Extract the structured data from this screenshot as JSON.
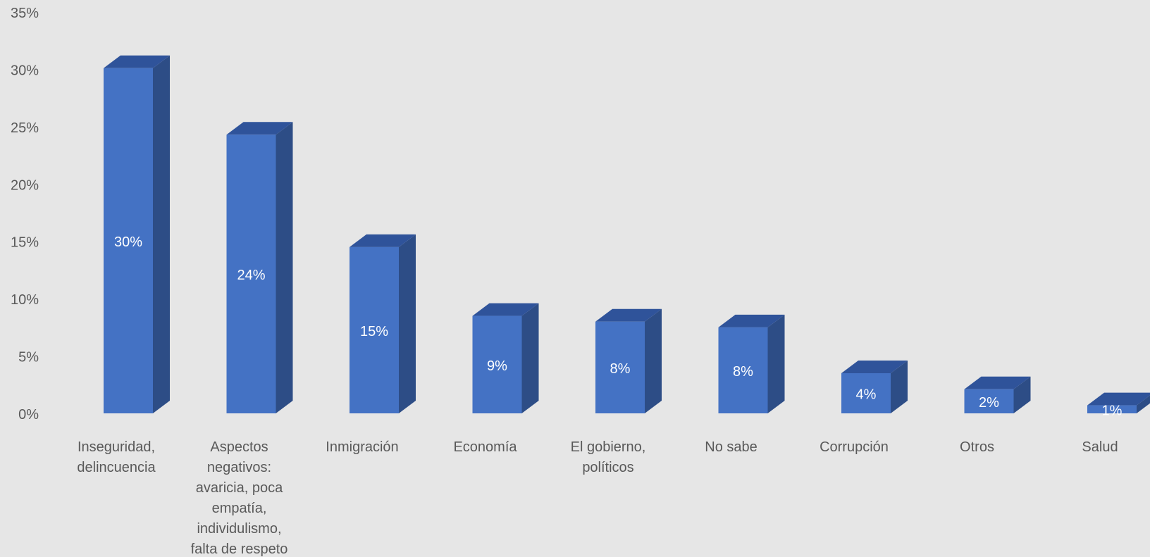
{
  "chart_data": {
    "type": "bar",
    "style": "3d-column",
    "categories": [
      [
        "Inseguridad,",
        "delincuencia"
      ],
      [
        "Aspectos",
        "negativos:",
        "avaricia, poca",
        "empatía,",
        "individulismo,",
        "falta de respeto"
      ],
      [
        "Inmigración"
      ],
      [
        "Economía"
      ],
      [
        "El gobierno,",
        "políticos"
      ],
      [
        "No sabe"
      ],
      [
        "Corrupción"
      ],
      [
        "Otros"
      ],
      [
        "Salud"
      ]
    ],
    "values": [
      30,
      24,
      15,
      9,
      8,
      8,
      4,
      2,
      1
    ],
    "bar_heights": [
      30.1,
      24.3,
      14.5,
      8.5,
      8.0,
      7.5,
      3.5,
      2.1,
      0.7
    ],
    "data_labels": [
      "30%",
      "24%",
      "15%",
      "9%",
      "8%",
      "8%",
      "4%",
      "2%",
      "1%"
    ],
    "yticks": [
      "0%",
      "5%",
      "10%",
      "15%",
      "20%",
      "25%",
      "30%",
      "35%"
    ],
    "ylim": [
      0,
      35
    ],
    "grid": false,
    "legend": "none",
    "colors": {
      "front": "#4472c4",
      "side": "#2d4d86",
      "top": "#2f539a",
      "background": "#e6e6e6",
      "text": "#595959"
    }
  }
}
